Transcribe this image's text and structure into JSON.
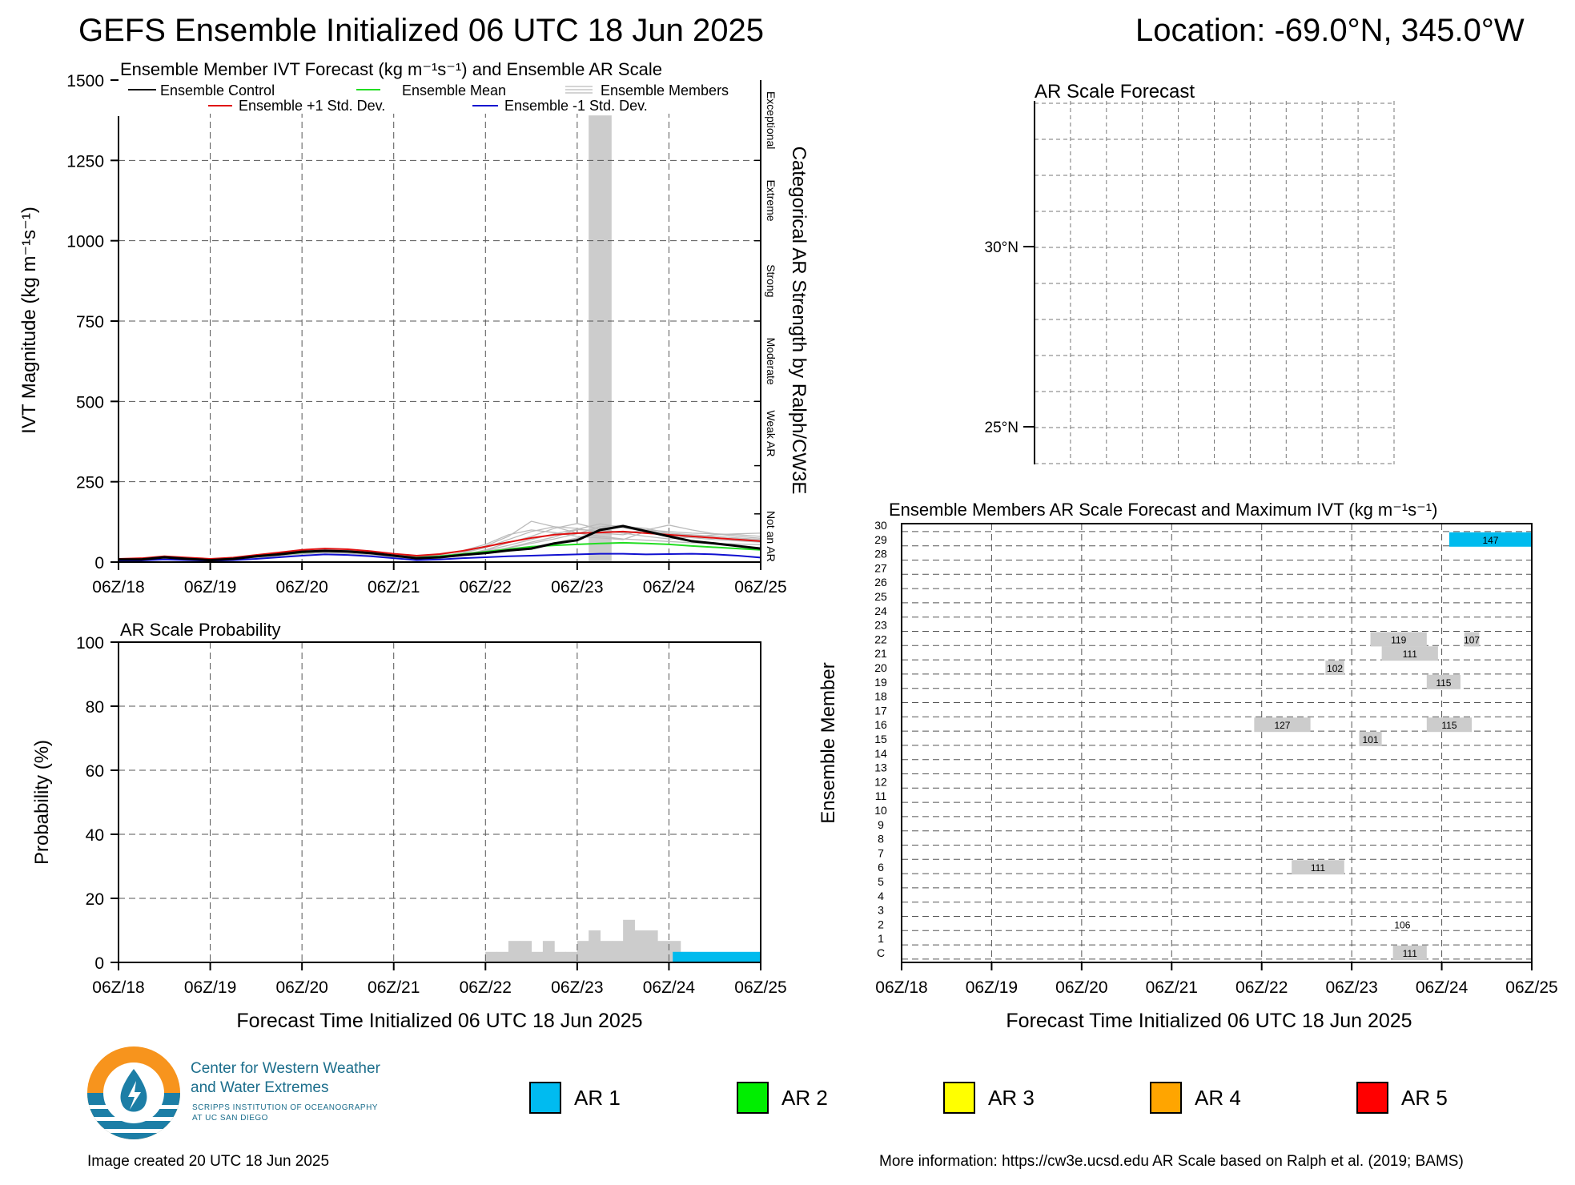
{
  "header": {
    "title": "GEFS Ensemble Initialized 06 UTC 18 Jun 2025",
    "location": "Location: -69.0°N, 345.0°W"
  },
  "time_ticks": [
    "06Z/18",
    "06Z/19",
    "06Z/20",
    "06Z/21",
    "06Z/22",
    "06Z/23",
    "06Z/24",
    "06Z/25"
  ],
  "chart_data": [
    {
      "id": "ivt",
      "type": "line",
      "title": "Ensemble Member IVT Forecast (kg m⁻¹s⁻¹) and Ensemble AR Scale",
      "ylabel": "IVT Magnitude (kg m⁻¹s⁻¹)",
      "right_label": "Categorical AR Strength by Ralph/CW3E",
      "categories_right": [
        "Not an AR",
        "Weak AR",
        "Moderate",
        "Strong",
        "Extreme",
        "Exceptional"
      ],
      "ylim": [
        0,
        1500
      ],
      "yticks": [
        0,
        250,
        500,
        750,
        1000,
        1250,
        1500
      ],
      "x_hours_range": [
        0,
        168
      ],
      "legend": {
        "control": "Ensemble Control",
        "mean": "Ensemble Mean",
        "members": "Ensemble Members",
        "plus": "Ensemble +1 Std. Dev.",
        "minus": "Ensemble -1 Std. Dev."
      },
      "colors": {
        "control": "#000000",
        "mean": "#22dd22",
        "members": "#bbbbbb",
        "plus": "#e01010",
        "minus": "#1010d0",
        "ar_bar": "#cccccc"
      },
      "ar_bars": [
        {
          "start": 123,
          "end": 129,
          "value": 1390
        }
      ],
      "x": [
        0,
        6,
        12,
        18,
        24,
        30,
        36,
        42,
        48,
        54,
        60,
        66,
        72,
        78,
        84,
        90,
        96,
        102,
        108,
        114,
        120,
        126,
        132,
        138,
        144,
        150,
        156,
        162,
        168
      ],
      "series": [
        {
          "key": "control",
          "values": [
            8,
            8,
            15,
            10,
            6,
            10,
            18,
            24,
            32,
            35,
            33,
            28,
            20,
            12,
            15,
            22,
            28,
            36,
            42,
            58,
            68,
            100,
            112,
            96,
            80,
            65,
            58,
            50,
            42
          ]
        },
        {
          "key": "mean",
          "values": [
            8,
            8,
            14,
            10,
            7,
            10,
            17,
            23,
            30,
            34,
            32,
            27,
            20,
            14,
            18,
            25,
            32,
            40,
            48,
            52,
            55,
            58,
            60,
            58,
            55,
            50,
            46,
            42,
            38
          ]
        },
        {
          "key": "plus",
          "values": [
            10,
            12,
            18,
            14,
            10,
            14,
            22,
            30,
            38,
            42,
            40,
            34,
            26,
            20,
            25,
            35,
            48,
            62,
            75,
            85,
            90,
            92,
            95,
            90,
            85,
            80,
            75,
            70,
            65
          ]
        },
        {
          "key": "minus",
          "values": [
            5,
            5,
            8,
            6,
            4,
            6,
            10,
            15,
            20,
            24,
            22,
            18,
            12,
            6,
            8,
            12,
            15,
            18,
            20,
            22,
            24,
            26,
            26,
            24,
            25,
            26,
            24,
            20,
            14
          ]
        }
      ],
      "members": [
        [
          6,
          8,
          14,
          12,
          8,
          12,
          20,
          26,
          34,
          38,
          36,
          30,
          22,
          16,
          22,
          35,
          55,
          85,
          100,
          92,
          80,
          75,
          70,
          95,
          90,
          85,
          80,
          75,
          70
        ],
        [
          9,
          10,
          16,
          11,
          6,
          9,
          16,
          22,
          28,
          32,
          30,
          25,
          18,
          12,
          16,
          28,
          45,
          70,
          95,
          110,
          105,
          90,
          85,
          100,
          95,
          90,
          88,
          85,
          80
        ],
        [
          7,
          7,
          12,
          9,
          5,
          8,
          15,
          20,
          26,
          30,
          29,
          24,
          17,
          10,
          14,
          22,
          38,
          60,
          80,
          105,
          120,
          102,
          90,
          80,
          72,
          78,
          85,
          88,
          90
        ],
        [
          8,
          9,
          15,
          13,
          9,
          13,
          21,
          28,
          36,
          40,
          38,
          32,
          24,
          18,
          20,
          26,
          34,
          44,
          58,
          72,
          88,
          110,
          115,
          100,
          86,
          80,
          75,
          72,
          70
        ],
        [
          10,
          11,
          17,
          12,
          7,
          11,
          19,
          25,
          33,
          37,
          35,
          29,
          21,
          13,
          17,
          24,
          30,
          38,
          46,
          60,
          75,
          95,
          111,
          105,
          90,
          82,
          76,
          70,
          64
        ],
        [
          5,
          6,
          11,
          8,
          4,
          7,
          14,
          19,
          25,
          29,
          27,
          22,
          15,
          8,
          12,
          20,
          28,
          45,
          62,
          78,
          101,
          98,
          90,
          100,
          115,
          100,
          88,
          80,
          74
        ],
        [
          9,
          10,
          15,
          11,
          6,
          10,
          18,
          24,
          31,
          35,
          34,
          28,
          20,
          14,
          18,
          30,
          50,
          80,
          127,
          110,
          90,
          80,
          72,
          68,
          64,
          60,
          58,
          56,
          54
        ],
        [
          7,
          8,
          13,
          10,
          6,
          9,
          17,
          23,
          30,
          34,
          33,
          27,
          19,
          12,
          15,
          24,
          36,
          52,
          70,
          88,
          102,
          119,
          107,
          95,
          84,
          76,
          70,
          66,
          62
        ]
      ]
    },
    {
      "id": "prob",
      "type": "bar",
      "title": "AR Scale Probability",
      "ylabel": "Probability (%)",
      "xlabel": "Forecast Time Initialized 06 UTC 18 Jun 2025",
      "ylim": [
        0,
        100
      ],
      "yticks": [
        0,
        20,
        40,
        60,
        80,
        100
      ],
      "bin_hours": 3,
      "bins": [
        {
          "h": 96,
          "v": 3.3
        },
        {
          "h": 99,
          "v": 3.3
        },
        {
          "h": 102,
          "v": 6.7
        },
        {
          "h": 105,
          "v": 6.7
        },
        {
          "h": 108,
          "v": 3.3
        },
        {
          "h": 111,
          "v": 6.7
        },
        {
          "h": 114,
          "v": 3.3
        },
        {
          "h": 117,
          "v": 3.3
        },
        {
          "h": 120,
          "v": 6.7
        },
        {
          "h": 123,
          "v": 10
        },
        {
          "h": 126,
          "v": 6.7
        },
        {
          "h": 129,
          "v": 6.7
        },
        {
          "h": 132,
          "v": 13.3
        },
        {
          "h": 135,
          "v": 10
        },
        {
          "h": 138,
          "v": 10
        },
        {
          "h": 141,
          "v": 6.7
        },
        {
          "h": 144,
          "v": 6.7
        },
        {
          "h": 147,
          "v": 3.3
        }
      ],
      "ar1_band": {
        "start": 145,
        "end": 168,
        "value": 3.3
      },
      "colors": {
        "prob": "#cccccc",
        "ar1": "#00bbee"
      }
    },
    {
      "id": "map",
      "type": "table",
      "title": "AR Scale Forecast",
      "lat_labels": [
        "30°N",
        "25°N"
      ]
    },
    {
      "id": "members",
      "type": "heatmap",
      "title": "Ensemble Members AR Scale Forecast and Maximum IVT (kg m⁻¹s⁻¹)",
      "ylabel": "Ensemble Member",
      "xlabel": "Forecast Time Initialized 06 UTC 18 Jun 2025",
      "member_labels": [
        "C",
        "1",
        "2",
        "3",
        "4",
        "5",
        "6",
        "7",
        "8",
        "9",
        "10",
        "11",
        "12",
        "13",
        "14",
        "15",
        "16",
        "17",
        "18",
        "19",
        "20",
        "21",
        "22",
        "23",
        "24",
        "25",
        "26",
        "27",
        "28",
        "29",
        "30"
      ],
      "bars": [
        {
          "row": 0,
          "start": 131,
          "end": 140,
          "label": "111",
          "cls": "gray"
        },
        {
          "row": 2,
          "start": 131,
          "end": 136,
          "label": "106",
          "cls": "none"
        },
        {
          "row": 6,
          "start": 104,
          "end": 118,
          "label": "111",
          "cls": "gray"
        },
        {
          "row": 15,
          "start": 122,
          "end": 128,
          "label": "101",
          "cls": "gray"
        },
        {
          "row": 16,
          "start": 94,
          "end": 109,
          "label": "127",
          "cls": "gray"
        },
        {
          "row": 16,
          "start": 140,
          "end": 152,
          "label": "115",
          "cls": "gray"
        },
        {
          "row": 19,
          "start": 140,
          "end": 149,
          "label": "115",
          "cls": "gray"
        },
        {
          "row": 20,
          "start": 113,
          "end": 118,
          "label": "102",
          "cls": "gray"
        },
        {
          "row": 21,
          "start": 128,
          "end": 143,
          "label": "111",
          "cls": "gray"
        },
        {
          "row": 22,
          "start": 125,
          "end": 140,
          "label": "119",
          "cls": "gray"
        },
        {
          "row": 22,
          "start": 150,
          "end": 154,
          "label": "107",
          "cls": "gray"
        },
        {
          "row": 29,
          "start": 146,
          "end": 168,
          "label": "147",
          "cls": "ar1"
        }
      ],
      "colors": {
        "gray": "#cccccc",
        "ar1": "#00bbee"
      }
    }
  ],
  "ar_legend": [
    {
      "label": "AR 1",
      "color": "#00bbf0"
    },
    {
      "label": "AR 2",
      "color": "#00ee00"
    },
    {
      "label": "AR 3",
      "color": "#ffff00"
    },
    {
      "label": "AR 4",
      "color": "#ffa500"
    },
    {
      "label": "AR 5",
      "color": "#ff0000"
    }
  ],
  "logo": {
    "line1": "Center for Western Weather",
    "line2": "and Water Extremes",
    "line3": "SCRIPPS INSTITUTION OF OCEANOGRAPHY",
    "line4": "AT UC SAN DIEGO"
  },
  "footer": {
    "created": "Image created 20 UTC 18 Jun 2025",
    "info": "More information: https://cw3e.ucsd.edu AR Scale based on Ralph et al. (2019; BAMS)"
  }
}
